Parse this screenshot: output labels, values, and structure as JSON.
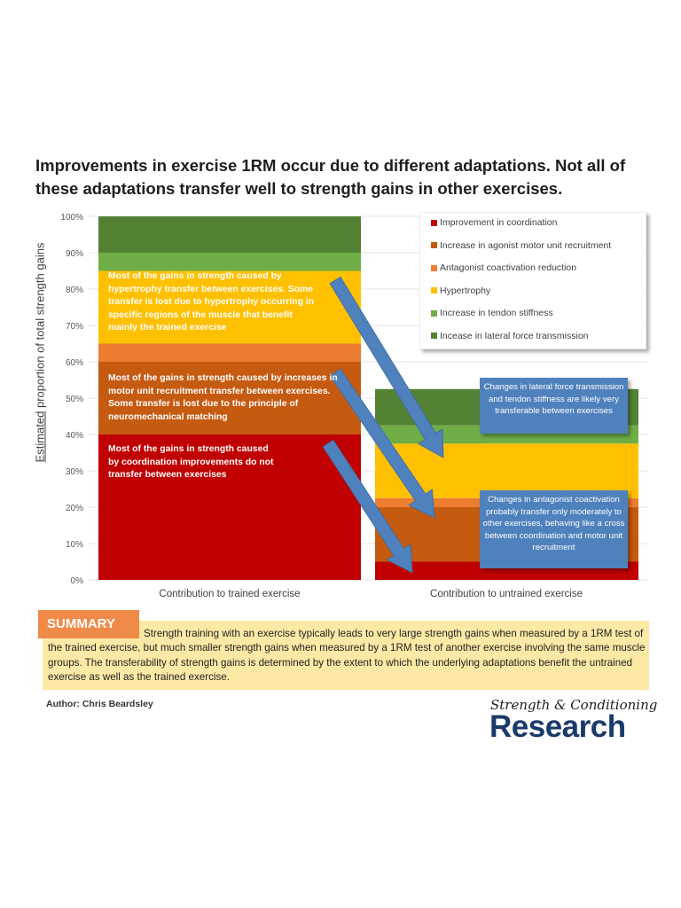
{
  "title": "Improvements in exercise 1RM occur due to different adaptations. Not all of these adaptations transfer well to strength gains in other exercises.",
  "chart_data": {
    "type": "bar",
    "stacked": true,
    "categories": [
      "Contribution to trained exercise",
      "Contribution to untrained exercise"
    ],
    "ylabel_underlined": "Estimated",
    "ylabel_rest": " proportion of total strength gains",
    "ylim": [
      0,
      100
    ],
    "yticks": [
      "0%",
      "10%",
      "20%",
      "30%",
      "40%",
      "50%",
      "60%",
      "70%",
      "80%",
      "90%",
      "100%"
    ],
    "grid": true,
    "legend_position": "top-right",
    "series": [
      {
        "name": "Improvement in coordination",
        "color": "#c00000",
        "values": [
          40,
          5
        ]
      },
      {
        "name": "Increase in agonist motor unit recruitment",
        "color": "#c55a11",
        "values": [
          20,
          15
        ]
      },
      {
        "name": "Antagonist coactivation reduction",
        "color": "#ed7d31",
        "values": [
          5,
          2.5
        ]
      },
      {
        "name": "Hypertrophy",
        "color": "#ffc000",
        "values": [
          20,
          15
        ]
      },
      {
        "name": "Increase in tendon stiffness",
        "color": "#70ad47",
        "values": [
          5,
          5
        ]
      },
      {
        "name": "Incease in lateral force transmission",
        "color": "#548235",
        "values": [
          10,
          10
        ]
      }
    ],
    "annotations": {
      "hypertrophy": "Most of the gains in strength caused by hypertrophy transfer between exercises. Some transfer is lost due to hypertrophy occurring in specific regions of the muscle that benefit mainly the trained exercise",
      "motor_unit": "Most of the gains in strength caused by increases in motor unit recruitment transfer between exercises. Some transfer is lost due to the principle of neuromechanical matching",
      "coordination": "Most of the gains in strength caused by coordination improvements do not transfer between exercises",
      "callout_lateral": "Changes in lateral force transmission and tendon stiffness are likely very transferable between exercises",
      "callout_antagonist": "Changes in antagonist coactivation probably transfer only moderately to other exercises, behaving like a cross between coordination and motor unit recruitment"
    },
    "arrow_color": "#4f81bd"
  },
  "summary": {
    "label": "SUMMARY",
    "text": "Strength training with an exercise typically leads to very large strength gains when measured by a 1RM test of the trained exercise, but much smaller strength gains when measured by a 1RM test of another exercise involving the same muscle groups. The transferability of strength gains is determined by the extent to which the underlying adaptations benefit the untrained exercise as well as the trained exercise."
  },
  "author": "Author: Chris Beardsley",
  "logo": {
    "top": "Strength & Conditioning",
    "bottom": "Research"
  }
}
